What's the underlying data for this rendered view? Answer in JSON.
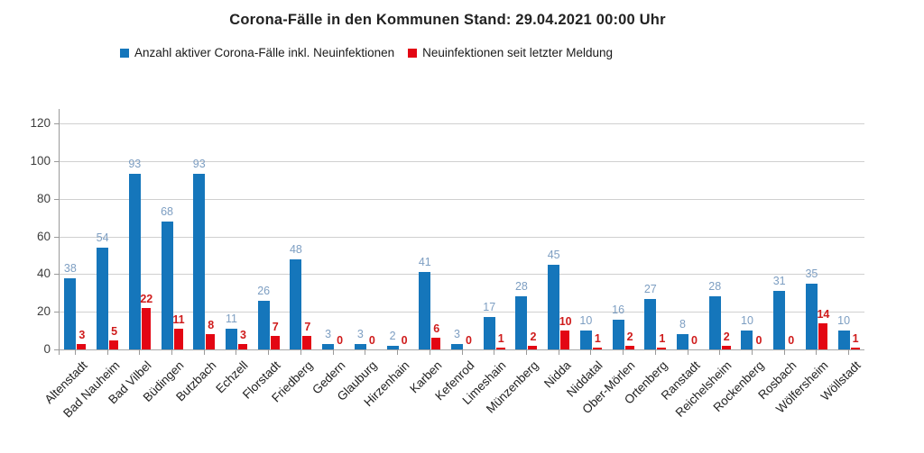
{
  "title": "Corona-Fälle in den Kommunen Stand: 29.04.2021 00:00 Uhr",
  "colors": {
    "bar_blue": "#1576bb",
    "bar_red": "#e30613",
    "label_blue": "#7d9ec2",
    "label_red": "#cf1b1b",
    "gridline": "#d0d0d0",
    "axis": "#9a9a9a"
  },
  "chart_data": {
    "type": "bar",
    "title": "Corona-Fälle in den Kommunen Stand: 29.04.2021 00:00 Uhr",
    "xlabel": "",
    "ylabel": "",
    "ylim": [
      0,
      120
    ],
    "y_ticks": [
      0,
      20,
      40,
      60,
      80,
      100,
      120
    ],
    "grid": true,
    "legend_position": "top",
    "categories": [
      "Altenstadt",
      "Bad Nauheim",
      "Bad Vilbel",
      "Büdingen",
      "Butzbach",
      "Echzell",
      "Florstadt",
      "Friedberg",
      "Gedern",
      "Glauburg",
      "Hirzenhain",
      "Karben",
      "Kefenrod",
      "Limeshain",
      "Münzenberg",
      "Nidda",
      "Niddatal",
      "Ober-Mörlen",
      "Ortenberg",
      "Ranstadt",
      "Reichelsheim",
      "Rockenberg",
      "Rosbach",
      "Wölfersheim",
      "Wöllstadt"
    ],
    "series": [
      {
        "name": "Anzahl aktiver Corona-Fälle inkl. Neuinfektionen",
        "color": "#1576bb",
        "values": [
          38,
          54,
          93,
          68,
          93,
          11,
          26,
          48,
          3,
          3,
          2,
          41,
          3,
          17,
          28,
          45,
          10,
          16,
          27,
          8,
          28,
          10,
          31,
          35,
          10
        ]
      },
      {
        "name": "Neuinfektionen seit letzter Meldung",
        "color": "#e30613",
        "values": [
          3,
          5,
          22,
          11,
          8,
          3,
          7,
          7,
          0,
          0,
          0,
          6,
          0,
          1,
          2,
          10,
          1,
          2,
          1,
          0,
          2,
          0,
          0,
          14,
          1
        ]
      }
    ]
  }
}
